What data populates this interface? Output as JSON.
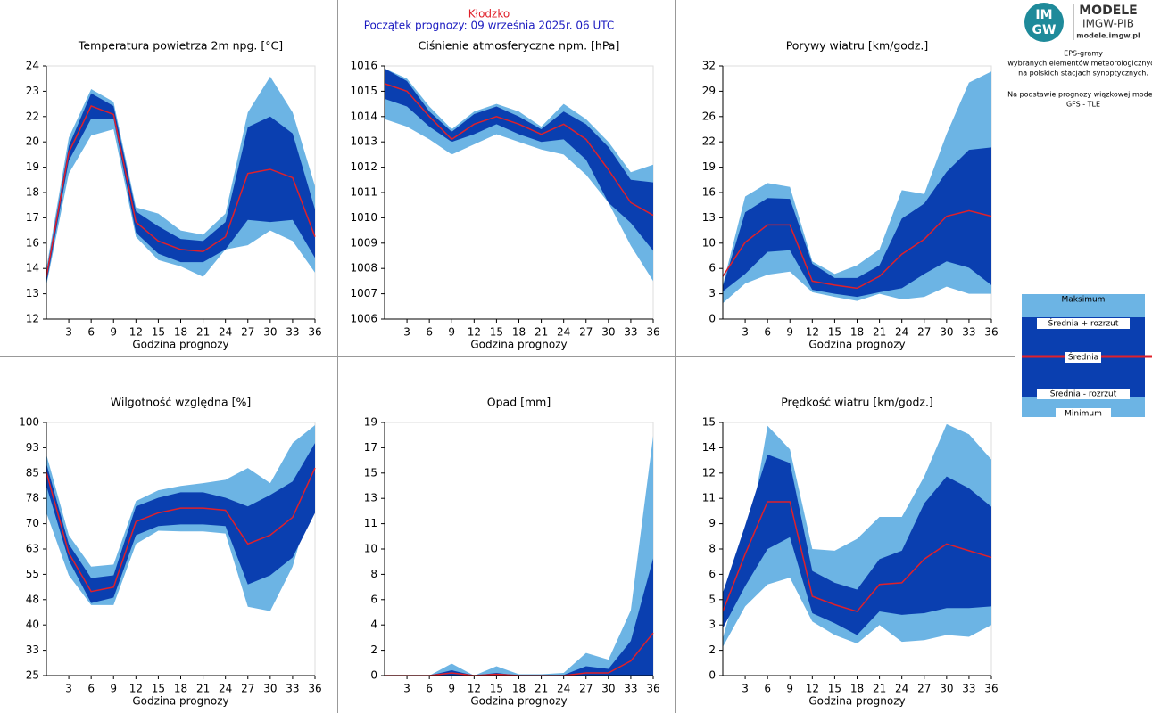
{
  "header": {
    "station": "Kłodzko",
    "forecast_start": "Początek prognozy: 09 września 2025r. 06 UTC"
  },
  "logo": {
    "badge": [
      "IM",
      "GW"
    ],
    "name": "MODELE",
    "org": "IMGW-PIB",
    "url": "modele.imgw.pl"
  },
  "notes": [
    "EPS-gramy",
    "wybranych elementów meteorologicznych",
    "na polskich stacjach  synoptycznych.",
    "Na podstawie prognozy wiązkowej modelu",
    "GFS - TLE"
  ],
  "legend": {
    "items": [
      {
        "name": "Maksimum",
        "color": "#6cb4e4"
      },
      {
        "name": "Średnia + rozrzut",
        "color": "#0a3fb0"
      },
      {
        "name": "Średnia",
        "color": "#e0202a"
      },
      {
        "name": "Średnia - rozrzut",
        "color": "#0a3fb0"
      },
      {
        "name": "Minimum",
        "color": "#6cb4e4"
      }
    ]
  },
  "chart_data": [
    {
      "type": "band",
      "title": "Temperatura powietrza 2m npg. [°C]",
      "xlabel": "Godzina prognozy",
      "x": [
        0,
        3,
        6,
        9,
        12,
        15,
        18,
        21,
        24,
        27,
        30,
        33,
        36
      ],
      "xlim": [
        0,
        36
      ],
      "xticks": [
        3,
        6,
        9,
        12,
        15,
        18,
        21,
        24,
        27,
        30,
        33,
        36
      ],
      "ylim": [
        12,
        24
      ],
      "yticks": [
        12,
        {
          "value": 13.2,
          "label": "13"
        },
        {
          "value": 14.4,
          "label": "14"
        },
        {
          "value": 15.6,
          "label": "16"
        },
        {
          "value": 16.8,
          "label": "17"
        },
        18,
        {
          "value": 19.2,
          "label": "19"
        },
        {
          "value": 20.4,
          "label": "20"
        },
        {
          "value": 21.6,
          "label": "22"
        },
        {
          "value": 22.8,
          "label": "23"
        },
        24
      ],
      "series": [
        {
          "values": [
            14.4,
            20.6,
            22.9,
            22.3,
            17.3,
            17.0,
            16.2,
            16.0,
            17.0,
            21.8,
            23.5,
            21.8,
            18.3
          ]
        },
        {
          "values": [
            14.2,
            20.2,
            22.7,
            22.1,
            17.1,
            16.4,
            15.8,
            15.7,
            16.6,
            21.1,
            21.6,
            20.8,
            17.2
          ]
        },
        {
          "values": [
            14.0,
            19.9,
            22.1,
            21.7,
            16.6,
            15.7,
            15.3,
            15.2,
            15.9,
            18.9,
            19.1,
            18.7,
            15.9
          ]
        },
        {
          "values": [
            13.7,
            19.5,
            21.5,
            21.5,
            16.1,
            15.1,
            14.7,
            14.7,
            15.3,
            16.7,
            16.6,
            16.7,
            14.9
          ]
        },
        {
          "values": [
            13.6,
            18.9,
            20.7,
            21.0,
            15.9,
            14.8,
            14.5,
            14.0,
            15.3,
            15.5,
            16.2,
            15.7,
            14.2
          ]
        }
      ]
    },
    {
      "type": "band",
      "title": "Ciśnienie atmosferyczne npm. [hPa]",
      "xlabel": "Godzina prognozy",
      "x": [
        0,
        3,
        6,
        9,
        12,
        15,
        18,
        21,
        24,
        27,
        30,
        33,
        36
      ],
      "xlim": [
        0,
        36
      ],
      "xticks": [
        3,
        6,
        9,
        12,
        15,
        18,
        21,
        24,
        27,
        30,
        33,
        36
      ],
      "ylim": [
        1006,
        1016
      ],
      "yticks": [
        1006,
        1007,
        1008,
        1009,
        1010,
        1011,
        1012,
        1013,
        1014,
        1015,
        1016
      ],
      "series": [
        {
          "values": [
            1015.9,
            1015.5,
            1014.4,
            1013.5,
            1014.2,
            1014.5,
            1014.2,
            1013.6,
            1014.5,
            1013.9,
            1013.0,
            1011.8,
            1012.1
          ]
        },
        {
          "values": [
            1015.9,
            1015.4,
            1014.2,
            1013.4,
            1014.1,
            1014.4,
            1014.0,
            1013.5,
            1014.2,
            1013.7,
            1012.8,
            1011.5,
            1011.4
          ]
        },
        {
          "values": [
            1015.3,
            1015.0,
            1014.0,
            1013.1,
            1013.7,
            1014.0,
            1013.7,
            1013.3,
            1013.7,
            1013.1,
            1011.9,
            1010.6,
            1010.1
          ]
        },
        {
          "values": [
            1014.7,
            1014.4,
            1013.6,
            1013.0,
            1013.3,
            1013.7,
            1013.3,
            1013.0,
            1013.1,
            1012.3,
            1010.6,
            1009.8,
            1008.7
          ]
        },
        {
          "values": [
            1013.9,
            1013.6,
            1013.1,
            1012.5,
            1012.9,
            1013.3,
            1013.0,
            1012.7,
            1012.5,
            1011.7,
            1010.6,
            1008.9,
            1007.5
          ]
        }
      ]
    },
    {
      "type": "band",
      "title": "Porywy wiatru [km/godz.]",
      "xlabel": "Godzina prognozy",
      "x": [
        0,
        3,
        6,
        9,
        12,
        15,
        18,
        21,
        24,
        27,
        30,
        33,
        36
      ],
      "xlim": [
        0,
        36
      ],
      "xticks": [
        3,
        6,
        9,
        12,
        15,
        18,
        21,
        24,
        27,
        30,
        33,
        36
      ],
      "ylim": [
        0,
        32
      ],
      "yticks": [
        0,
        {
          "value": 3.2,
          "label": "3"
        },
        {
          "value": 6.4,
          "label": "6"
        },
        {
          "value": 9.6,
          "label": "10"
        },
        {
          "value": 12.8,
          "label": "13"
        },
        16,
        {
          "value": 19.2,
          "label": "19"
        },
        {
          "value": 22.4,
          "label": "22"
        },
        {
          "value": 25.6,
          "label": "26"
        },
        {
          "value": 28.8,
          "label": "29"
        },
        32
      ],
      "series": [
        {
          "values": [
            4.3,
            15.5,
            17.2,
            16.7,
            7.3,
            5.7,
            6.8,
            8.8,
            16.3,
            15.8,
            23.4,
            29.9,
            31.3
          ]
        },
        {
          "values": [
            4.1,
            13.5,
            15.3,
            15.2,
            7.0,
            5.2,
            5.2,
            6.8,
            12.7,
            14.6,
            18.6,
            21.4,
            21.7
          ]
        },
        {
          "values": [
            5.4,
            9.7,
            11.9,
            11.9,
            4.8,
            4.3,
            3.9,
            5.4,
            8.2,
            10.1,
            13.0,
            13.7,
            13.0
          ]
        },
        {
          "values": [
            3.5,
            5.7,
            8.5,
            8.7,
            3.7,
            3.2,
            2.8,
            3.4,
            3.9,
            5.7,
            7.3,
            6.5,
            4.3
          ]
        },
        {
          "values": [
            2.0,
            4.5,
            5.6,
            6.0,
            3.4,
            2.8,
            2.3,
            3.2,
            2.5,
            2.8,
            4.1,
            3.2,
            3.2
          ]
        }
      ]
    },
    {
      "type": "band",
      "title": "Wilgotność względna [%]",
      "xlabel": "Godzina prognozy",
      "x": [
        0,
        3,
        6,
        9,
        12,
        15,
        18,
        21,
        24,
        27,
        30,
        33,
        36
      ],
      "xlim": [
        0,
        36
      ],
      "xticks": [
        3,
        6,
        9,
        12,
        15,
        18,
        21,
        24,
        27,
        30,
        33,
        36
      ],
      "ylim": [
        25,
        100
      ],
      "yticks": [
        25,
        {
          "value": 32.5,
          "label": "33"
        },
        40,
        {
          "value": 47.5,
          "label": "48"
        },
        55,
        {
          "value": 62.5,
          "label": "63"
        },
        70,
        {
          "value": 77.5,
          "label": "78"
        },
        85,
        {
          "value": 92.5,
          "label": "93"
        },
        100
      ],
      "series": [
        {
          "values": [
            90.5,
            66.6,
            57.3,
            57.9,
            76.7,
            79.9,
            81.2,
            82.0,
            83.0,
            86.5,
            82.0,
            93.9,
            99.2
          ]
        },
        {
          "values": [
            87.8,
            64.0,
            53.9,
            54.7,
            75.1,
            77.7,
            79.3,
            79.3,
            77.7,
            75.1,
            78.5,
            82.5,
            93.9
          ]
        },
        {
          "values": [
            85.2,
            61.3,
            49.9,
            51.2,
            70.6,
            73.2,
            74.6,
            74.6,
            74.0,
            64.0,
            66.6,
            71.9,
            86.5
          ]
        },
        {
          "values": [
            81.2,
            59.2,
            46.5,
            48.1,
            66.6,
            69.3,
            69.8,
            69.8,
            69.3,
            52.0,
            54.7,
            60.0,
            73.2
          ]
        },
        {
          "values": [
            73.2,
            54.7,
            45.9,
            45.9,
            64.0,
            67.9,
            67.7,
            67.7,
            67.1,
            45.4,
            44.1,
            57.3,
            80.4
          ]
        }
      ]
    },
    {
      "type": "band",
      "title": "Opad [mm]",
      "xlabel": "Godzina prognozy",
      "x": [
        0,
        3,
        6,
        9,
        12,
        15,
        18,
        21,
        24,
        27,
        30,
        33,
        36
      ],
      "xlim": [
        0,
        36
      ],
      "xticks": [
        3,
        6,
        9,
        12,
        15,
        18,
        21,
        24,
        27,
        30,
        33,
        36
      ],
      "ylim": [
        0,
        19
      ],
      "yticks": [
        0,
        {
          "value": 1.9,
          "label": "2"
        },
        {
          "value": 3.8,
          "label": "4"
        },
        {
          "value": 5.7,
          "label": "6"
        },
        {
          "value": 7.6,
          "label": "8"
        },
        {
          "value": 9.5,
          "label": "10"
        },
        {
          "value": 11.4,
          "label": "11"
        },
        {
          "value": 13.3,
          "label": "13"
        },
        {
          "value": 15.2,
          "label": "15"
        },
        {
          "value": 17.1,
          "label": "17"
        },
        19
      ],
      "series": [
        {
          "values": [
            0,
            0,
            0,
            0.9,
            0,
            0.7,
            0.1,
            0.1,
            0.2,
            1.7,
            1.2,
            4.9,
            18.0
          ]
        },
        {
          "values": [
            0,
            0,
            0,
            0.4,
            0,
            0.2,
            0,
            0,
            0.05,
            0.7,
            0.5,
            2.6,
            8.8
          ]
        },
        {
          "values": [
            0,
            0,
            0,
            0.2,
            0,
            0.1,
            0,
            0,
            0,
            0.2,
            0.2,
            1.1,
            3.2
          ]
        },
        {
          "values": [
            0,
            0,
            0,
            0,
            0,
            0,
            0,
            0,
            0,
            0,
            0,
            0,
            0
          ]
        },
        {
          "values": [
            0,
            0,
            0,
            0,
            0,
            0,
            0,
            0,
            0,
            0,
            0,
            0,
            0
          ]
        }
      ]
    },
    {
      "type": "band",
      "title": "Prędkość wiatru [km/godz.]",
      "xlabel": "Godzina prognozy",
      "x": [
        0,
        3,
        6,
        9,
        12,
        15,
        18,
        21,
        24,
        27,
        30,
        33,
        36
      ],
      "xlim": [
        0,
        36
      ],
      "xticks": [
        3,
        6,
        9,
        12,
        15,
        18,
        21,
        24,
        27,
        30,
        33,
        36
      ],
      "ylim": [
        0,
        15
      ],
      "yticks": [
        0,
        {
          "value": 1.5,
          "label": "2"
        },
        3,
        {
          "value": 4.5,
          "label": "5"
        },
        6,
        {
          "value": 7.5,
          "label": "8"
        },
        9,
        {
          "value": 10.5,
          "label": "11"
        },
        12,
        {
          "value": 13.5,
          "label": "14"
        },
        15
      ],
      "series": [
        {
          "values": [
            2.2,
            7.0,
            14.8,
            13.4,
            7.5,
            7.4,
            8.1,
            9.4,
            9.4,
            11.8,
            14.9,
            14.3,
            12.8
          ]
        },
        {
          "values": [
            4.9,
            8.9,
            13.1,
            12.6,
            6.2,
            5.5,
            5.1,
            6.9,
            7.4,
            10.2,
            11.8,
            11.1,
            10.0
          ]
        },
        {
          "values": [
            3.8,
            7.2,
            10.3,
            10.3,
            4.7,
            4.2,
            3.8,
            5.4,
            5.5,
            6.9,
            7.8,
            7.4,
            7.0
          ]
        },
        {
          "values": [
            2.8,
            5.3,
            7.5,
            8.2,
            3.7,
            3.1,
            2.4,
            3.8,
            3.6,
            3.7,
            4.0,
            4.0,
            4.1
          ]
        },
        {
          "values": [
            1.7,
            4.1,
            5.4,
            5.8,
            3.2,
            2.4,
            1.9,
            3.0,
            2.0,
            2.1,
            2.4,
            2.3,
            3.0
          ]
        }
      ]
    }
  ]
}
